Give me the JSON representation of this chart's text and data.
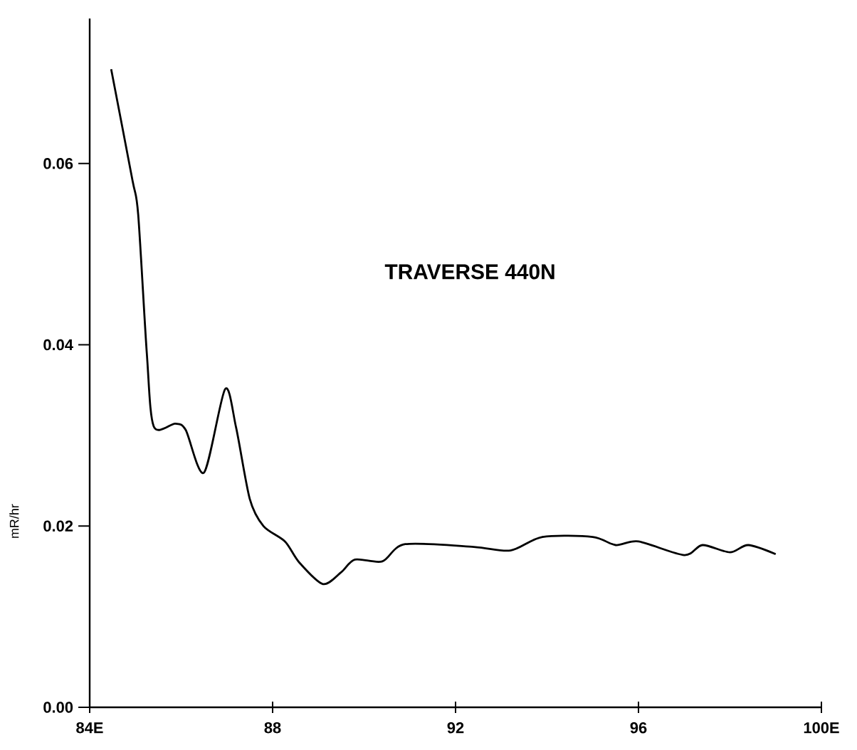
{
  "chart_data": {
    "type": "line",
    "title": "TRAVERSE 440N",
    "ylabel": "mR/hr",
    "xlim": [
      84,
      100
    ],
    "xticks": [
      {
        "value": 84,
        "label": "84E"
      },
      88,
      92,
      96,
      {
        "value": 100,
        "label": "100E"
      }
    ],
    "ylim": [
      0,
      0.076
    ],
    "yticks": [
      {
        "value": 0,
        "label": "0.00"
      },
      {
        "value": 0.02,
        "label": "0.02"
      },
      {
        "value": 0.04,
        "label": "0.04"
      },
      {
        "value": 0.06,
        "label": "0.06"
      }
    ],
    "series": [
      {
        "color": "#000000",
        "x": [
          84.47,
          84.93,
          85.06,
          85.25,
          85.4,
          85.87,
          86.1,
          86.5,
          86.96,
          87.2,
          87.5,
          87.8,
          88.27,
          88.58,
          89.1,
          89.5,
          89.8,
          90.4,
          90.9,
          92.4,
          93.2,
          93.9,
          95.0,
          95.5,
          96.0,
          97.0,
          97.4,
          98.0,
          98.4,
          99.0
        ],
        "values": [
          0.0704,
          0.0583,
          0.0544,
          0.039,
          0.031,
          0.0313,
          0.0306,
          0.0259,
          0.0351,
          0.0309,
          0.023,
          0.02,
          0.0183,
          0.016,
          0.0136,
          0.0149,
          0.0163,
          0.0161,
          0.018,
          0.0177,
          0.0173,
          0.0188,
          0.0188,
          0.0179,
          0.0183,
          0.0168,
          0.0179,
          0.0171,
          0.0179,
          0.0169
        ]
      }
    ]
  }
}
